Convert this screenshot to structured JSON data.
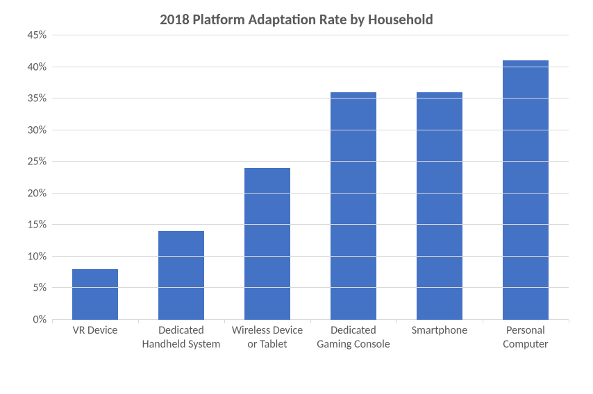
{
  "chart": {
    "type": "bar",
    "title": "2018 Platform Adaptation Rate by Household",
    "title_fontsize": 21,
    "title_color": "#595959",
    "categories": [
      "VR Device",
      "Dedicated Handheld System",
      "Wireless Device or Tablet",
      "Dedicated Gaming Console",
      "Smartphone",
      "Personal Computer"
    ],
    "values": [
      8,
      14,
      24,
      36,
      36,
      41
    ],
    "bar_color": "#4472c4",
    "bar_width": 0.54,
    "ylim": [
      0,
      45
    ],
    "ytick_step": 5,
    "ytick_labels": [
      "0%",
      "5%",
      "10%",
      "15%",
      "20%",
      "25%",
      "30%",
      "35%",
      "40%",
      "45%"
    ],
    "axis_label_fontsize": 16,
    "axis_label_color": "#595959",
    "grid_color": "#d9d9d9",
    "background_color": "#ffffff",
    "show_horizontal_grid": true,
    "show_vertical_grid": false
  }
}
